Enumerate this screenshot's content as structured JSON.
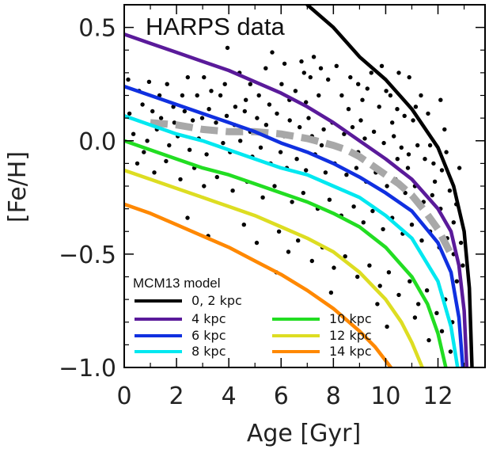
{
  "chart_data": {
    "type": "line",
    "title": "HARPS data",
    "xlabel": "Age [Gyr]",
    "ylabel": "[Fe/H]",
    "xlim": [
      0,
      13.8
    ],
    "ylim": [
      -1.0,
      0.6
    ],
    "x_ticks": [
      0,
      2,
      4,
      6,
      8,
      10,
      12
    ],
    "y_ticks": [
      {
        "value": 0.5,
        "label": "0.5"
      },
      {
        "value": 0.0,
        "label": "0.0"
      },
      {
        "value": -0.5,
        "label": "−0.5"
      },
      {
        "value": -1.0,
        "label": "−1.0"
      }
    ],
    "legend": {
      "title": "MCM13 model",
      "position": "bottom-left",
      "entries": [
        {
          "label": "0, 2 kpc",
          "color": "#000000"
        },
        {
          "label": "4 kpc",
          "color": "#5a1a9a"
        },
        {
          "label": "6 kpc",
          "color": "#1030e0"
        },
        {
          "label": "8 kpc",
          "color": "#00e8f0"
        },
        {
          "label": "10 kpc",
          "color": "#22dd22"
        },
        {
          "label": "12 kpc",
          "color": "#dddd22"
        },
        {
          "label": "14 kpc",
          "color": "#ff8800"
        }
      ]
    },
    "series": [
      {
        "name": "0, 2 kpc",
        "color": "#000000",
        "x": [
          7.0,
          8.0,
          9.0,
          10.0,
          11.0,
          12.0,
          12.6,
          13.0,
          13.2,
          13.3
        ],
        "y": [
          0.6,
          0.5,
          0.37,
          0.27,
          0.14,
          -0.03,
          -0.2,
          -0.4,
          -0.65,
          -1.0
        ]
      },
      {
        "name": "4 kpc",
        "color": "#5a1a9a",
        "x": [
          0,
          1,
          2,
          3,
          4,
          5,
          6,
          7,
          8,
          9,
          10,
          11,
          12,
          12.5,
          12.8,
          13.0,
          13.1
        ],
        "y": [
          0.47,
          0.43,
          0.39,
          0.35,
          0.31,
          0.26,
          0.21,
          0.15,
          0.08,
          0.0,
          -0.08,
          -0.17,
          -0.3,
          -0.4,
          -0.55,
          -0.75,
          -1.0
        ]
      },
      {
        "name": "6 kpc",
        "color": "#1030e0",
        "x": [
          0,
          1,
          2,
          3,
          4,
          5,
          6,
          7,
          8,
          9,
          10,
          11,
          12,
          12.5,
          12.8,
          12.95
        ],
        "y": [
          0.24,
          0.2,
          0.16,
          0.12,
          0.08,
          0.04,
          -0.01,
          -0.05,
          -0.1,
          -0.16,
          -0.23,
          -0.31,
          -0.45,
          -0.58,
          -0.78,
          -1.0
        ]
      },
      {
        "name": "8 kpc",
        "color": "#00e8f0",
        "x": [
          0,
          1,
          2,
          3,
          4,
          5,
          6,
          7,
          8,
          9,
          10,
          11,
          12,
          12.5,
          12.75
        ],
        "y": [
          0.11,
          0.07,
          0.03,
          0.0,
          -0.04,
          -0.08,
          -0.12,
          -0.15,
          -0.2,
          -0.25,
          -0.33,
          -0.43,
          -0.62,
          -0.82,
          -1.0
        ]
      },
      {
        "name": "10 kpc",
        "color": "#22dd22",
        "x": [
          0,
          1,
          2,
          3,
          4,
          5,
          6,
          7,
          8,
          9,
          10,
          11,
          11.6,
          12.0,
          12.3
        ],
        "y": [
          0.0,
          -0.04,
          -0.08,
          -0.12,
          -0.15,
          -0.19,
          -0.23,
          -0.27,
          -0.32,
          -0.38,
          -0.47,
          -0.6,
          -0.72,
          -0.85,
          -1.0
        ]
      },
      {
        "name": "12 kpc",
        "color": "#dddd22",
        "x": [
          0,
          1,
          2,
          3,
          4,
          5,
          6,
          7,
          8,
          9,
          10,
          10.6,
          11.0,
          11.4
        ],
        "y": [
          -0.13,
          -0.17,
          -0.21,
          -0.25,
          -0.29,
          -0.33,
          -0.38,
          -0.43,
          -0.49,
          -0.58,
          -0.7,
          -0.8,
          -0.89,
          -1.0
        ]
      },
      {
        "name": "14 kpc",
        "color": "#ff8800",
        "x": [
          0,
          1,
          2,
          3,
          4,
          5,
          6,
          7,
          8,
          9,
          9.6,
          10.2
        ],
        "y": [
          -0.28,
          -0.32,
          -0.37,
          -0.42,
          -0.47,
          -0.53,
          -0.59,
          -0.66,
          -0.74,
          -0.84,
          -0.91,
          -1.0
        ]
      }
    ],
    "trend": {
      "color": "#a8a8a8",
      "style": "dashed",
      "x": [
        1.0,
        2.0,
        3.0,
        4.0,
        5.0,
        6.0,
        7.0,
        8.0,
        8.5,
        9.0,
        9.5,
        10.0,
        10.5,
        11.0,
        11.5,
        12.0,
        12.5
      ],
      "y": [
        0.08,
        0.07,
        0.05,
        0.04,
        0.04,
        0.03,
        0.01,
        -0.02,
        -0.04,
        -0.07,
        -0.11,
        -0.15,
        -0.19,
        -0.24,
        -0.31,
        -0.39,
        -0.5
      ]
    },
    "scatter_points": [
      [
        3.95,
        0.41
      ],
      [
        5.66,
        0.39
      ],
      [
        6.13,
        0.34
      ],
      [
        7.25,
        0.37
      ],
      [
        6.78,
        0.35
      ],
      [
        7.52,
        0.32
      ],
      [
        8.12,
        0.33
      ],
      [
        5.41,
        0.32
      ],
      [
        2.43,
        0.28
      ],
      [
        6.88,
        0.3
      ],
      [
        7.12,
        0.28
      ],
      [
        4.41,
        0.3
      ],
      [
        4.82,
        0.25
      ],
      [
        8.95,
        0.25
      ],
      [
        9.3,
        0.23
      ],
      [
        10.02,
        0.22
      ],
      [
        0.57,
        0.22
      ],
      [
        1.64,
        0.25
      ],
      [
        2.22,
        0.2
      ],
      [
        2.79,
        0.2
      ],
      [
        3.33,
        0.22
      ],
      [
        3.68,
        0.2
      ],
      [
        6.02,
        0.25
      ],
      [
        6.55,
        0.22
      ],
      [
        7.44,
        0.2
      ],
      [
        8.32,
        0.2
      ],
      [
        9.11,
        0.18
      ],
      [
        9.75,
        0.15
      ],
      [
        10.18,
        0.2
      ],
      [
        10.44,
        0.14
      ],
      [
        10.72,
        0.11
      ],
      [
        11.05,
        0.09
      ],
      [
        0.2,
        0.12
      ],
      [
        0.7,
        0.16
      ],
      [
        1.08,
        0.13
      ],
      [
        1.41,
        0.1
      ],
      [
        1.88,
        0.15
      ],
      [
        2.31,
        0.13
      ],
      [
        2.98,
        0.1
      ],
      [
        3.24,
        0.14
      ],
      [
        3.51,
        0.08
      ],
      [
        3.92,
        0.11
      ],
      [
        4.22,
        0.07
      ],
      [
        4.61,
        0.13
      ],
      [
        5.08,
        0.1
      ],
      [
        5.43,
        0.07
      ],
      [
        5.84,
        0.12
      ],
      [
        6.33,
        0.09
      ],
      [
        6.71,
        0.06
      ],
      [
        7.05,
        0.1
      ],
      [
        7.63,
        0.05
      ],
      [
        7.96,
        0.08
      ],
      [
        8.41,
        0.03
      ],
      [
        8.73,
        0.06
      ],
      [
        9.2,
        0.01
      ],
      [
        9.55,
        0.04
      ],
      [
        9.93,
        -0.01
      ],
      [
        10.31,
        0.02
      ],
      [
        10.6,
        -0.03
      ],
      [
        10.88,
        -0.06
      ],
      [
        11.22,
        -0.02
      ],
      [
        11.5,
        -0.08
      ],
      [
        11.83,
        -0.1
      ],
      [
        12.15,
        -0.13
      ],
      [
        0.35,
        0.03
      ],
      [
        0.88,
        0.0
      ],
      [
        1.25,
        0.05
      ],
      [
        1.72,
        -0.02
      ],
      [
        2.05,
        0.02
      ],
      [
        2.5,
        -0.04
      ],
      [
        2.85,
        0.01
      ],
      [
        3.15,
        -0.06
      ],
      [
        3.78,
        -0.01
      ],
      [
        4.05,
        -0.05
      ],
      [
        4.44,
        0.0
      ],
      [
        4.9,
        -0.07
      ],
      [
        5.22,
        -0.03
      ],
      [
        5.6,
        -0.1
      ],
      [
        5.98,
        -0.05
      ],
      [
        6.22,
        -0.12
      ],
      [
        6.6,
        -0.08
      ],
      [
        6.95,
        -0.13
      ],
      [
        7.3,
        -0.06
      ],
      [
        7.7,
        -0.14
      ],
      [
        8.05,
        -0.1
      ],
      [
        8.5,
        -0.15
      ],
      [
        8.88,
        -0.12
      ],
      [
        9.25,
        -0.18
      ],
      [
        9.62,
        -0.14
      ],
      [
        10.05,
        -0.2
      ],
      [
        10.38,
        -0.17
      ],
      [
        10.75,
        -0.23
      ],
      [
        11.12,
        -0.2
      ],
      [
        11.45,
        -0.27
      ],
      [
        11.78,
        -0.24
      ],
      [
        12.1,
        -0.3
      ],
      [
        0.5,
        -0.1
      ],
      [
        1.15,
        -0.14
      ],
      [
        1.6,
        -0.09
      ],
      [
        2.15,
        -0.17
      ],
      [
        2.68,
        -0.12
      ],
      [
        3.05,
        -0.2
      ],
      [
        3.55,
        -0.16
      ],
      [
        4.15,
        -0.22
      ],
      [
        4.7,
        -0.18
      ],
      [
        5.3,
        -0.25
      ],
      [
        5.75,
        -0.2
      ],
      [
        6.42,
        -0.27
      ],
      [
        6.85,
        -0.23
      ],
      [
        7.4,
        -0.3
      ],
      [
        7.85,
        -0.26
      ],
      [
        8.3,
        -0.33
      ],
      [
        8.78,
        -0.29
      ],
      [
        9.15,
        -0.36
      ],
      [
        9.5,
        -0.31
      ],
      [
        9.9,
        -0.39
      ],
      [
        10.25,
        -0.34
      ],
      [
        10.65,
        -0.41
      ],
      [
        11.0,
        -0.37
      ],
      [
        11.38,
        -0.44
      ],
      [
        11.7,
        -0.4
      ],
      [
        12.05,
        -0.47
      ],
      [
        12.35,
        -0.43
      ],
      [
        12.6,
        -0.5
      ],
      [
        2.42,
        -0.34
      ],
      [
        3.21,
        -0.42
      ],
      [
        4.58,
        -0.37
      ],
      [
        5.07,
        -0.45
      ],
      [
        5.92,
        -0.4
      ],
      [
        6.28,
        -0.49
      ],
      [
        6.65,
        -0.44
      ],
      [
        7.18,
        -0.53
      ],
      [
        7.58,
        -0.47
      ],
      [
        8.02,
        -0.56
      ],
      [
        8.45,
        -0.51
      ],
      [
        8.92,
        -0.6
      ],
      [
        9.38,
        -0.55
      ],
      [
        9.78,
        -0.64
      ],
      [
        10.12,
        -0.58
      ],
      [
        10.5,
        -0.68
      ],
      [
        10.92,
        -0.62
      ],
      [
        11.25,
        -0.72
      ],
      [
        11.58,
        -0.66
      ],
      [
        11.95,
        -0.76
      ],
      [
        12.28,
        -0.7
      ],
      [
        12.55,
        -0.8
      ],
      [
        5.82,
        -0.58
      ],
      [
        7.91,
        -0.67
      ],
      [
        9.68,
        -0.72
      ],
      [
        10.05,
        -0.82
      ],
      [
        11.12,
        -0.78
      ],
      [
        11.65,
        -0.88
      ],
      [
        12.15,
        -0.84
      ],
      [
        12.48,
        -0.93
      ],
      [
        12.72,
        -0.62
      ],
      [
        12.88,
        -0.45
      ],
      [
        12.7,
        -0.28
      ],
      [
        12.82,
        -0.12
      ],
      [
        12.25,
        0.05
      ],
      [
        11.62,
        0.12
      ],
      [
        11.35,
        0.2
      ],
      [
        10.9,
        0.28
      ],
      [
        10.5,
        0.3
      ],
      [
        9.85,
        0.33
      ],
      [
        9.45,
        0.3
      ],
      [
        8.65,
        0.28
      ],
      [
        7.8,
        0.27
      ],
      [
        6.32,
        0.18
      ],
      [
        5.15,
        0.2
      ],
      [
        4.65,
        0.18
      ],
      [
        3.85,
        0.25
      ],
      [
        3.05,
        0.28
      ],
      [
        1.35,
        0.2
      ],
      [
        0.95,
        0.26
      ],
      [
        0.15,
        0.27
      ],
      [
        4.25,
        0.15
      ],
      [
        5.55,
        0.16
      ],
      [
        6.95,
        0.17
      ],
      [
        8.58,
        0.14
      ],
      [
        10.85,
        -0.12
      ],
      [
        11.88,
        -0.18
      ],
      [
        12.45,
        -0.22
      ],
      [
        12.6,
        -0.36
      ],
      [
        12.95,
        -0.55
      ],
      [
        0.75,
        -0.05
      ],
      [
        1.92,
        0.08
      ],
      [
        2.62,
        0.09
      ],
      [
        3.38,
        0.04
      ],
      [
        4.82,
        0.04
      ],
      [
        6.12,
        0.02
      ],
      [
        7.55,
        -0.02
      ],
      [
        8.95,
        -0.05
      ],
      [
        10.45,
        -0.08
      ],
      [
        11.7,
        -0.02
      ],
      [
        12.32,
        -0.05
      ],
      [
        12.1,
        0.18
      ],
      [
        11.15,
        0.15
      ],
      [
        10.25,
        0.08
      ],
      [
        9.05,
        0.09
      ],
      [
        7.18,
        0.02
      ]
    ]
  }
}
